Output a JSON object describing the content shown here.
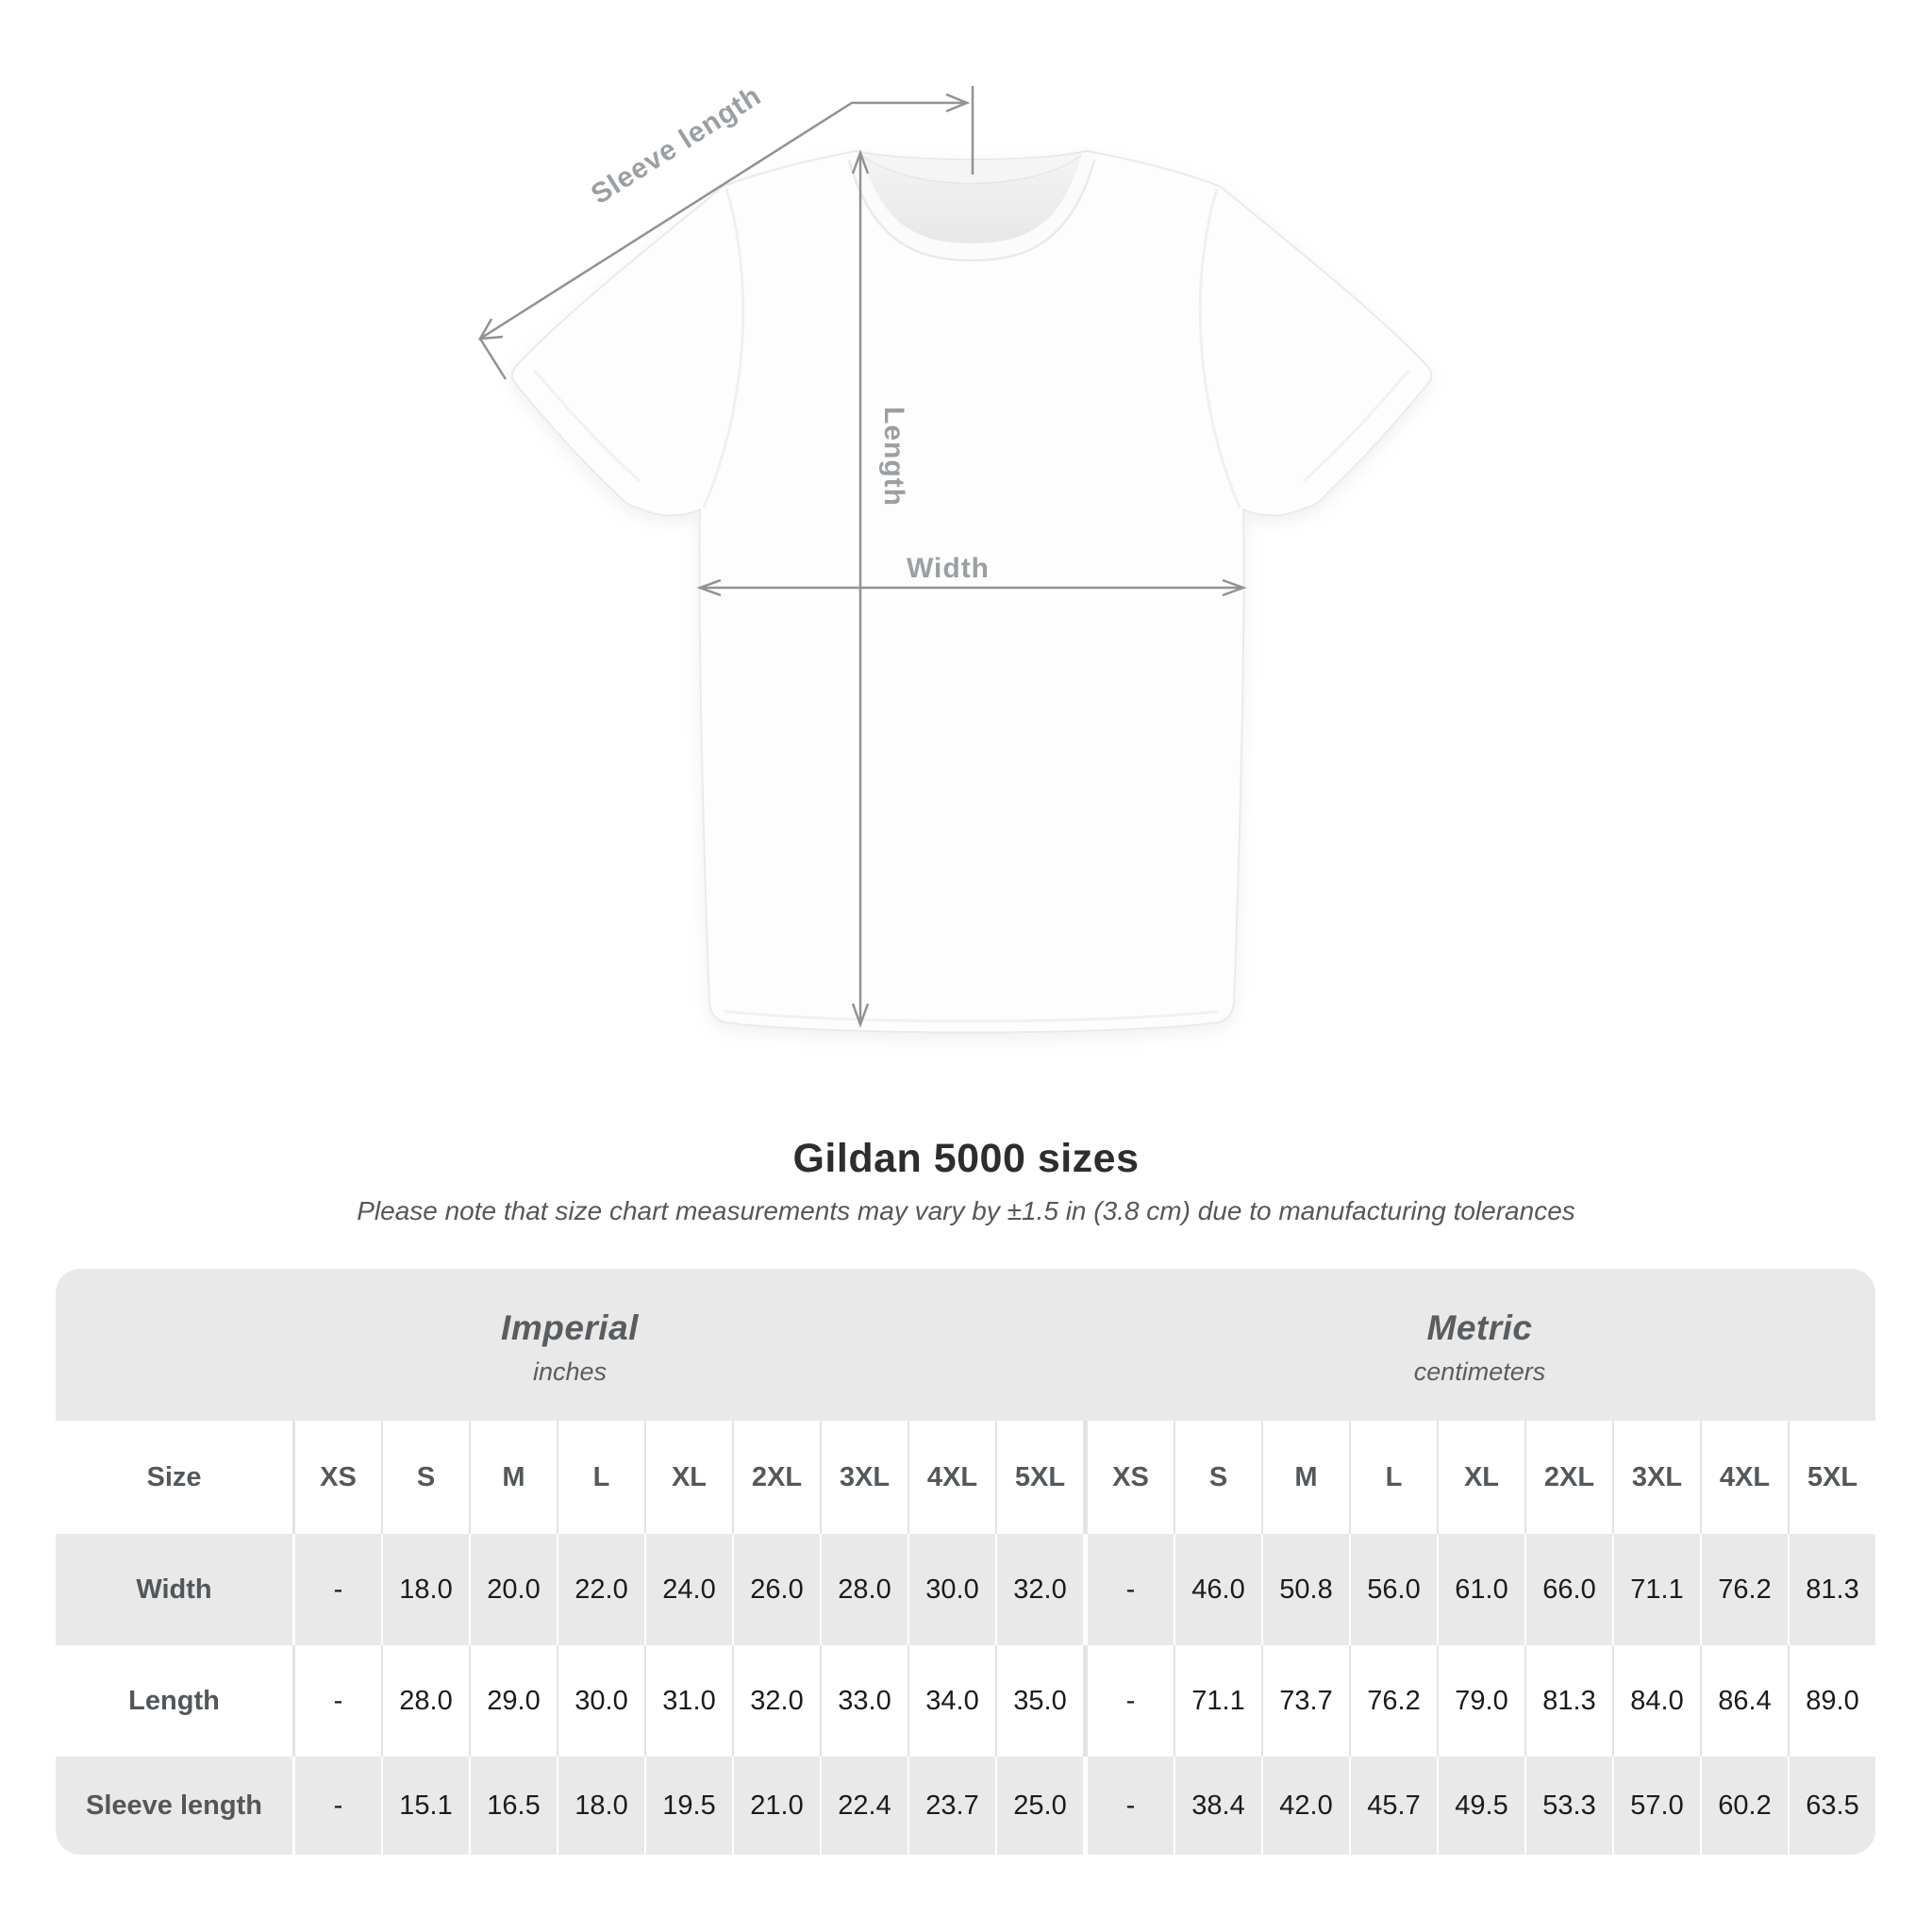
{
  "diagram": {
    "sleeve_length_label": "Sleeve length",
    "length_label": "Length",
    "width_label": "Width"
  },
  "header": {
    "title": "Gildan 5000 sizes",
    "subtitle": "Please note that size chart measurements may vary by ±1.5 in (3.8 cm) due to manufacturing tolerances"
  },
  "table": {
    "size_col_header": "Size",
    "unit_groups": [
      {
        "label": "Imperial",
        "sublabel": "inches"
      },
      {
        "label": "Metric",
        "sublabel": "centimeters"
      }
    ],
    "sizes": [
      "XS",
      "S",
      "M",
      "L",
      "XL",
      "2XL",
      "3XL",
      "4XL",
      "5XL"
    ],
    "rows": [
      {
        "label": "Width",
        "imperial": [
          "-",
          "18.0",
          "20.0",
          "22.0",
          "24.0",
          "26.0",
          "28.0",
          "30.0",
          "32.0"
        ],
        "metric": [
          "-",
          "46.0",
          "50.8",
          "56.0",
          "61.0",
          "66.0",
          "71.1",
          "76.2",
          "81.3"
        ]
      },
      {
        "label": "Length",
        "imperial": [
          "-",
          "28.0",
          "29.0",
          "30.0",
          "31.0",
          "32.0",
          "33.0",
          "34.0",
          "35.0"
        ],
        "metric": [
          "-",
          "71.1",
          "73.7",
          "76.2",
          "79.0",
          "81.3",
          "84.0",
          "86.4",
          "89.0"
        ]
      },
      {
        "label": "Sleeve length",
        "imperial": [
          "-",
          "15.1",
          "16.5",
          "18.0",
          "19.5",
          "21.0",
          "22.4",
          "23.7",
          "25.0"
        ],
        "metric": [
          "-",
          "38.4",
          "42.0",
          "45.7",
          "49.5",
          "53.3",
          "57.0",
          "60.2",
          "63.5"
        ]
      }
    ]
  },
  "colors": {
    "row_gray": "#e9e9e9",
    "separator_on_white": "#e3e3e3",
    "separator_on_gray": "#ffffff",
    "annotation_gray": "#8f9396",
    "annotation_text": "#9b9fa2",
    "title_text": "#2b2d2f",
    "value_text": "#191c1e",
    "label_text": "#53575a",
    "unit_text": "#595d60"
  }
}
